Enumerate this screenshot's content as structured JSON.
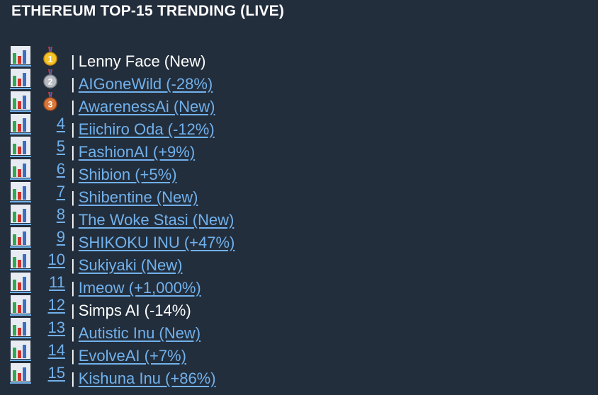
{
  "header": {
    "title": "ETHEREUM TOP-15 TRENDING (LIVE)"
  },
  "separator": "|",
  "items": [
    {
      "rank": "1",
      "medal": "gold",
      "name": "Lenny Face (New)",
      "linked": false
    },
    {
      "rank": "2",
      "medal": "silver",
      "name": "AIGoneWild (-28%)",
      "linked": true
    },
    {
      "rank": "3",
      "medal": "bronze",
      "name": "AwarenessAi (New)",
      "linked": true
    },
    {
      "rank": "4",
      "name": "Eiichiro Oda (-12%)",
      "linked": true
    },
    {
      "rank": "5",
      "name": "FashionAI (+9%)",
      "linked": true
    },
    {
      "rank": "6",
      "name": "Shibion (+5%)",
      "linked": true
    },
    {
      "rank": "7",
      "name": "Shibentine (New)",
      "linked": true
    },
    {
      "rank": "8",
      "name": "The Woke Stasi (New)",
      "linked": true
    },
    {
      "rank": "9",
      "name": "SHIKOKU INU (+47%)",
      "linked": true
    },
    {
      "rank": "10",
      "name": "Sukiyaki (New)",
      "linked": true
    },
    {
      "rank": "11",
      "name": "Imeow (+1,000%)",
      "linked": true
    },
    {
      "rank": "12",
      "name": "Simps AI (-14%)",
      "linked": false
    },
    {
      "rank": "13",
      "name": "Autistic Inu (New)",
      "linked": true
    },
    {
      "rank": "14",
      "name": "EvolveAI (+7%)",
      "linked": true
    },
    {
      "rank": "15",
      "name": "Kishuna Inu (+86%)",
      "linked": true
    }
  ]
}
